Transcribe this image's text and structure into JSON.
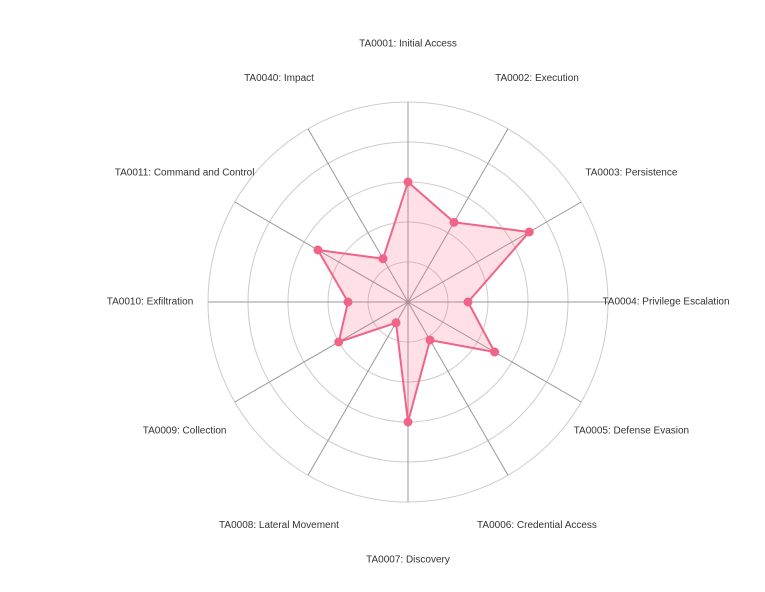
{
  "chart_data": {
    "type": "radar",
    "categories": [
      "TA0001: Initial Access",
      "TA0002: Execution",
      "TA0003: Persistence",
      "TA0004: Privilege Escalation",
      "TA0005: Defense Evasion",
      "TA0006: Credential Access",
      "TA0007: Discovery",
      "TA0008: Lateral Movement",
      "TA0009: Collection",
      "TA0010: Exfiltration",
      "TA0011: Command and Control",
      "TA0040: Impact"
    ],
    "series": [
      {
        "values": [
          3,
          2.3,
          3.5,
          1.5,
          2.5,
          1.1,
          3,
          0.6,
          2,
          1.5,
          2.6,
          1.25
        ]
      }
    ],
    "rlim": [
      0,
      5
    ],
    "rings": 5,
    "grid": true,
    "legend": "none",
    "colors": {
      "series_line": "#f06488",
      "series_fill": "rgba(255, 99, 132, 0.2)",
      "grid": "#cccccc",
      "spokes": "#999999",
      "label": "#333333"
    }
  }
}
